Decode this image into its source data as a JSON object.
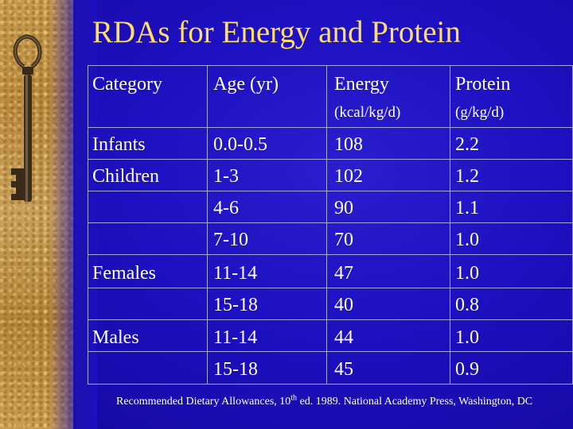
{
  "title": "RDAs for Energy and Protein",
  "colors": {
    "background": "#1d10c0",
    "title": "#ffdd66",
    "text": "#ffffff",
    "grid": "#a8a4e8"
  },
  "table": {
    "headers": {
      "category": "Category",
      "age": "Age (yr)",
      "energy": "Energy",
      "energy_unit": "(kcal/kg/d)",
      "protein": "Protein",
      "protein_unit": "(g/kg/d)"
    },
    "rows": [
      {
        "category": "Infants",
        "age": "0.0-0.5",
        "energy": "108",
        "protein": "2.2"
      },
      {
        "category": "Children",
        "age": "1-3",
        "energy": "102",
        "protein": "1.2"
      },
      {
        "category": "",
        "age": "4-6",
        "energy": "90",
        "protein": "1.1"
      },
      {
        "category": "",
        "age": "7-10",
        "energy": "70",
        "protein": "1.0"
      },
      {
        "category": "Females",
        "age": "11-14",
        "energy": "47",
        "protein": "1.0"
      },
      {
        "category": "",
        "age": "15-18",
        "energy": "40",
        "protein": "0.8"
      },
      {
        "category": "Males",
        "age": "11-14",
        "energy": "44",
        "protein": "1.0"
      },
      {
        "category": "",
        "age": "15-18",
        "energy": "45",
        "protein": "0.9"
      }
    ]
  },
  "footnote": {
    "before": "Recommended Dietary Allowances, 10",
    "sup": "th",
    "after": " ed. 1989. National Academy Press, Washington, DC"
  },
  "decor": {
    "left_icon": "key-icon"
  }
}
